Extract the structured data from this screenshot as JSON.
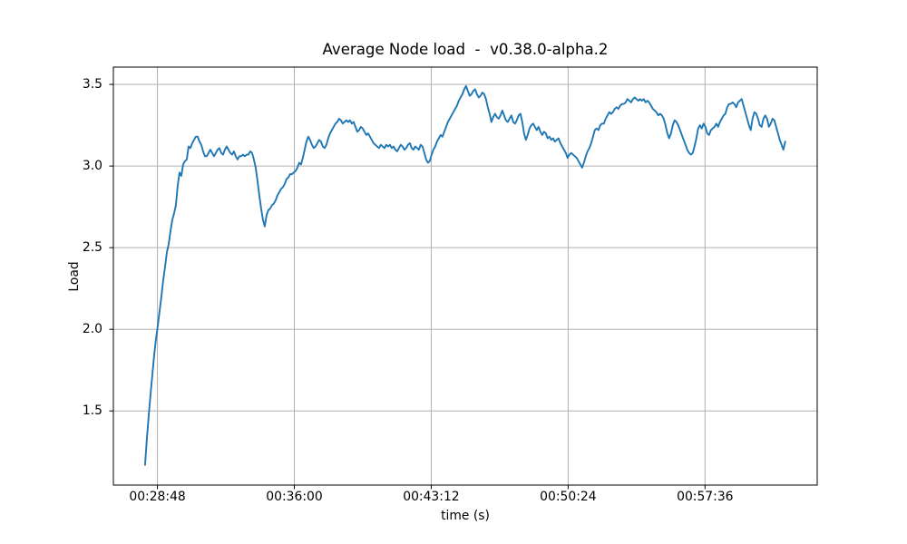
{
  "figure": {
    "background": "#ffffff",
    "frame_color": "#000000"
  },
  "chart_data": {
    "type": "line",
    "title": "Average Node load  -  v0.38.0-alpha.2",
    "xlabel": "time (s)",
    "ylabel": "Load",
    "grid": true,
    "grid_color": "#b0b0b0",
    "line_color": "#1f77b4",
    "legend": null,
    "xlim_seconds": [
      1589,
      3810
    ],
    "ylim": [
      1.046,
      3.606
    ],
    "x_ticks": [
      {
        "seconds": 1728,
        "label": "00:28:48"
      },
      {
        "seconds": 2160,
        "label": "00:36:00"
      },
      {
        "seconds": 2592,
        "label": "00:43:12"
      },
      {
        "seconds": 3024,
        "label": "00:50:24"
      },
      {
        "seconds": 3456,
        "label": "00:57:36"
      }
    ],
    "y_ticks": [
      {
        "value": 1.5,
        "label": "1.5"
      },
      {
        "value": 2.0,
        "label": "2.0"
      },
      {
        "value": 2.5,
        "label": "2.5"
      },
      {
        "value": 3.0,
        "label": "3.0"
      },
      {
        "value": 3.5,
        "label": "3.5"
      }
    ],
    "series": [
      {
        "name": "average-node-load",
        "t0_seconds": 1689,
        "dt_seconds": 5.7225,
        "values": [
          1.17,
          1.33,
          1.47,
          1.6,
          1.72,
          1.84,
          1.94,
          2.02,
          2.11,
          2.2,
          2.3,
          2.38,
          2.47,
          2.52,
          2.6,
          2.67,
          2.71,
          2.76,
          2.88,
          2.96,
          2.94,
          3.01,
          3.03,
          3.04,
          3.12,
          3.11,
          3.14,
          3.16,
          3.18,
          3.18,
          3.15,
          3.13,
          3.09,
          3.06,
          3.06,
          3.08,
          3.1,
          3.08,
          3.06,
          3.08,
          3.1,
          3.11,
          3.08,
          3.07,
          3.1,
          3.12,
          3.1,
          3.08,
          3.07,
          3.09,
          3.06,
          3.04,
          3.06,
          3.06,
          3.07,
          3.06,
          3.07,
          3.07,
          3.09,
          3.08,
          3.04,
          2.99,
          2.91,
          2.82,
          2.74,
          2.67,
          2.63,
          2.7,
          2.73,
          2.74,
          2.76,
          2.77,
          2.79,
          2.82,
          2.84,
          2.86,
          2.87,
          2.89,
          2.92,
          2.93,
          2.95,
          2.95,
          2.96,
          2.97,
          2.99,
          3.02,
          3.01,
          3.05,
          3.1,
          3.15,
          3.18,
          3.16,
          3.13,
          3.11,
          3.12,
          3.14,
          3.16,
          3.15,
          3.12,
          3.11,
          3.13,
          3.17,
          3.2,
          3.22,
          3.24,
          3.26,
          3.27,
          3.29,
          3.28,
          3.26,
          3.27,
          3.28,
          3.27,
          3.28,
          3.26,
          3.27,
          3.24,
          3.21,
          3.22,
          3.24,
          3.23,
          3.21,
          3.19,
          3.2,
          3.18,
          3.16,
          3.14,
          3.13,
          3.12,
          3.11,
          3.13,
          3.12,
          3.11,
          3.13,
          3.12,
          3.13,
          3.11,
          3.12,
          3.1,
          3.09,
          3.11,
          3.13,
          3.12,
          3.1,
          3.11,
          3.13,
          3.14,
          3.11,
          3.1,
          3.12,
          3.11,
          3.1,
          3.13,
          3.12,
          3.08,
          3.04,
          3.02,
          3.03,
          3.07,
          3.1,
          3.12,
          3.15,
          3.17,
          3.19,
          3.18,
          3.21,
          3.24,
          3.27,
          3.29,
          3.31,
          3.33,
          3.35,
          3.37,
          3.4,
          3.42,
          3.44,
          3.47,
          3.49,
          3.46,
          3.43,
          3.44,
          3.46,
          3.47,
          3.44,
          3.42,
          3.43,
          3.45,
          3.44,
          3.41,
          3.36,
          3.32,
          3.27,
          3.3,
          3.32,
          3.3,
          3.29,
          3.31,
          3.34,
          3.31,
          3.28,
          3.27,
          3.29,
          3.31,
          3.27,
          3.26,
          3.28,
          3.31,
          3.32,
          3.27,
          3.2,
          3.16,
          3.19,
          3.23,
          3.25,
          3.26,
          3.24,
          3.22,
          3.24,
          3.21,
          3.19,
          3.21,
          3.2,
          3.17,
          3.18,
          3.16,
          3.17,
          3.15,
          3.16,
          3.17,
          3.14,
          3.12,
          3.1,
          3.08,
          3.05,
          3.07,
          3.08,
          3.07,
          3.06,
          3.05,
          3.03,
          3.01,
          2.99,
          3.02,
          3.06,
          3.09,
          3.11,
          3.14,
          3.18,
          3.22,
          3.23,
          3.22,
          3.25,
          3.26,
          3.26,
          3.29,
          3.31,
          3.33,
          3.32,
          3.33,
          3.35,
          3.36,
          3.35,
          3.37,
          3.38,
          3.38,
          3.39,
          3.41,
          3.4,
          3.39,
          3.41,
          3.42,
          3.41,
          3.4,
          3.41,
          3.4,
          3.41,
          3.39,
          3.4,
          3.39,
          3.37,
          3.35,
          3.34,
          3.33,
          3.31,
          3.32,
          3.31,
          3.29,
          3.25,
          3.2,
          3.17,
          3.2,
          3.25,
          3.28,
          3.27,
          3.25,
          3.22,
          3.19,
          3.16,
          3.13,
          3.1,
          3.08,
          3.07,
          3.08,
          3.12,
          3.17,
          3.23,
          3.25,
          3.23,
          3.26,
          3.24,
          3.2,
          3.19,
          3.22,
          3.23,
          3.24,
          3.26,
          3.24,
          3.27,
          3.29,
          3.31,
          3.32,
          3.36,
          3.38,
          3.38,
          3.39,
          3.38,
          3.36,
          3.39,
          3.4,
          3.41,
          3.37,
          3.33,
          3.29,
          3.25,
          3.22,
          3.29,
          3.33,
          3.32,
          3.29,
          3.25,
          3.24,
          3.29,
          3.31,
          3.29,
          3.24,
          3.26,
          3.29,
          3.28,
          3.24,
          3.2,
          3.16,
          3.13,
          3.1,
          3.15
        ]
      }
    ]
  }
}
